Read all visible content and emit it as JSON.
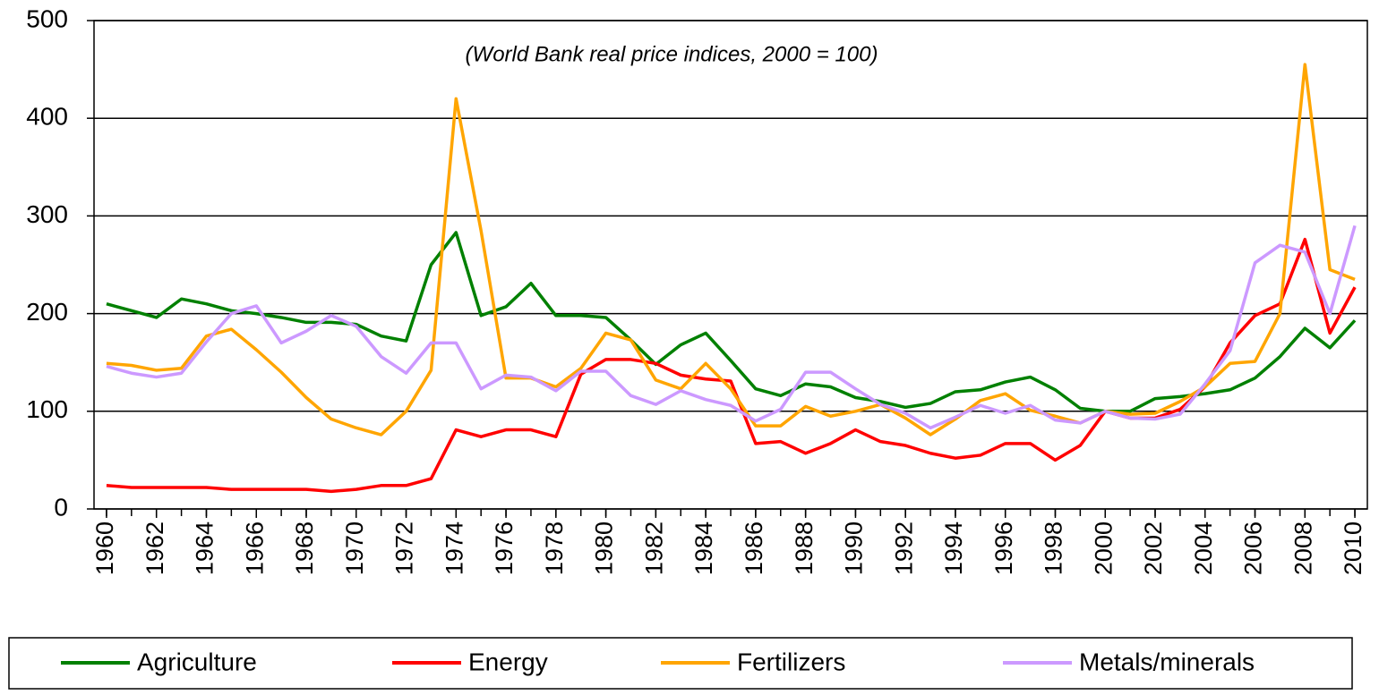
{
  "chart_data": {
    "type": "line",
    "annotation": "(World Bank real price indices, 2000 = 100)",
    "x": [
      1960,
      1961,
      1962,
      1963,
      1964,
      1965,
      1966,
      1967,
      1968,
      1969,
      1970,
      1971,
      1972,
      1973,
      1974,
      1975,
      1976,
      1977,
      1978,
      1979,
      1980,
      1981,
      1982,
      1983,
      1984,
      1985,
      1986,
      1987,
      1988,
      1989,
      1990,
      1991,
      1992,
      1993,
      1994,
      1995,
      1996,
      1997,
      1998,
      1999,
      2000,
      2001,
      2002,
      2003,
      2004,
      2005,
      2006,
      2007,
      2008,
      2009,
      2010
    ],
    "xlim": [
      1959.5,
      2010.5
    ],
    "xticks": [
      1960,
      1962,
      1964,
      1966,
      1968,
      1970,
      1972,
      1974,
      1976,
      1978,
      1980,
      1982,
      1984,
      1986,
      1988,
      1990,
      1992,
      1994,
      1996,
      1998,
      2000,
      2002,
      2004,
      2006,
      2008,
      2010
    ],
    "ylim": [
      0,
      500
    ],
    "yticks": [
      0,
      100,
      200,
      300,
      400,
      500
    ],
    "grid": true,
    "legend": "bottom",
    "series": [
      {
        "name": "Agriculture",
        "color": "#008000",
        "values": [
          210,
          203,
          196,
          215,
          210,
          203,
          200,
          196,
          191,
          191,
          189,
          177,
          172,
          250,
          283,
          198,
          207,
          231,
          198,
          198,
          196,
          173,
          148,
          168,
          180,
          152,
          123,
          116,
          128,
          125,
          114,
          110,
          104,
          108,
          120,
          122,
          130,
          135,
          122,
          103,
          100,
          100,
          113,
          115,
          118,
          122,
          134,
          156,
          185,
          165,
          193
        ]
      },
      {
        "name": "Energy",
        "color": "#ff0000",
        "values": [
          24,
          22,
          22,
          22,
          22,
          20,
          20,
          20,
          20,
          18,
          20,
          24,
          24,
          31,
          81,
          74,
          81,
          81,
          74,
          138,
          153,
          153,
          149,
          137,
          133,
          131,
          67,
          69,
          57,
          67,
          81,
          69,
          65,
          57,
          52,
          55,
          67,
          67,
          50,
          65,
          100,
          93,
          93,
          102,
          125,
          170,
          198,
          210,
          276,
          180,
          227
        ]
      },
      {
        "name": "Fertilizers",
        "color": "#ffa500",
        "values": [
          149,
          147,
          142,
          144,
          177,
          184,
          163,
          140,
          114,
          92,
          83,
          76,
          100,
          142,
          420,
          285,
          134,
          134,
          125,
          144,
          180,
          173,
          132,
          123,
          149,
          123,
          85,
          85,
          105,
          95,
          100,
          107,
          93,
          76,
          92,
          111,
          118,
          101,
          95,
          88,
          100,
          97,
          98,
          110,
          125,
          149,
          151,
          200,
          455,
          245,
          235
        ]
      },
      {
        "name": "Metals/minerals",
        "color": "#cc99ff",
        "values": [
          146,
          139,
          135,
          139,
          171,
          200,
          208,
          170,
          182,
          198,
          187,
          156,
          139,
          170,
          170,
          123,
          137,
          135,
          121,
          141,
          141,
          116,
          107,
          121,
          112,
          106,
          90,
          102,
          140,
          140,
          123,
          107,
          98,
          83,
          94,
          106,
          98,
          106,
          91,
          88,
          100,
          93,
          92,
          97,
          128,
          162,
          252,
          270,
          263,
          200,
          290
        ]
      }
    ]
  }
}
